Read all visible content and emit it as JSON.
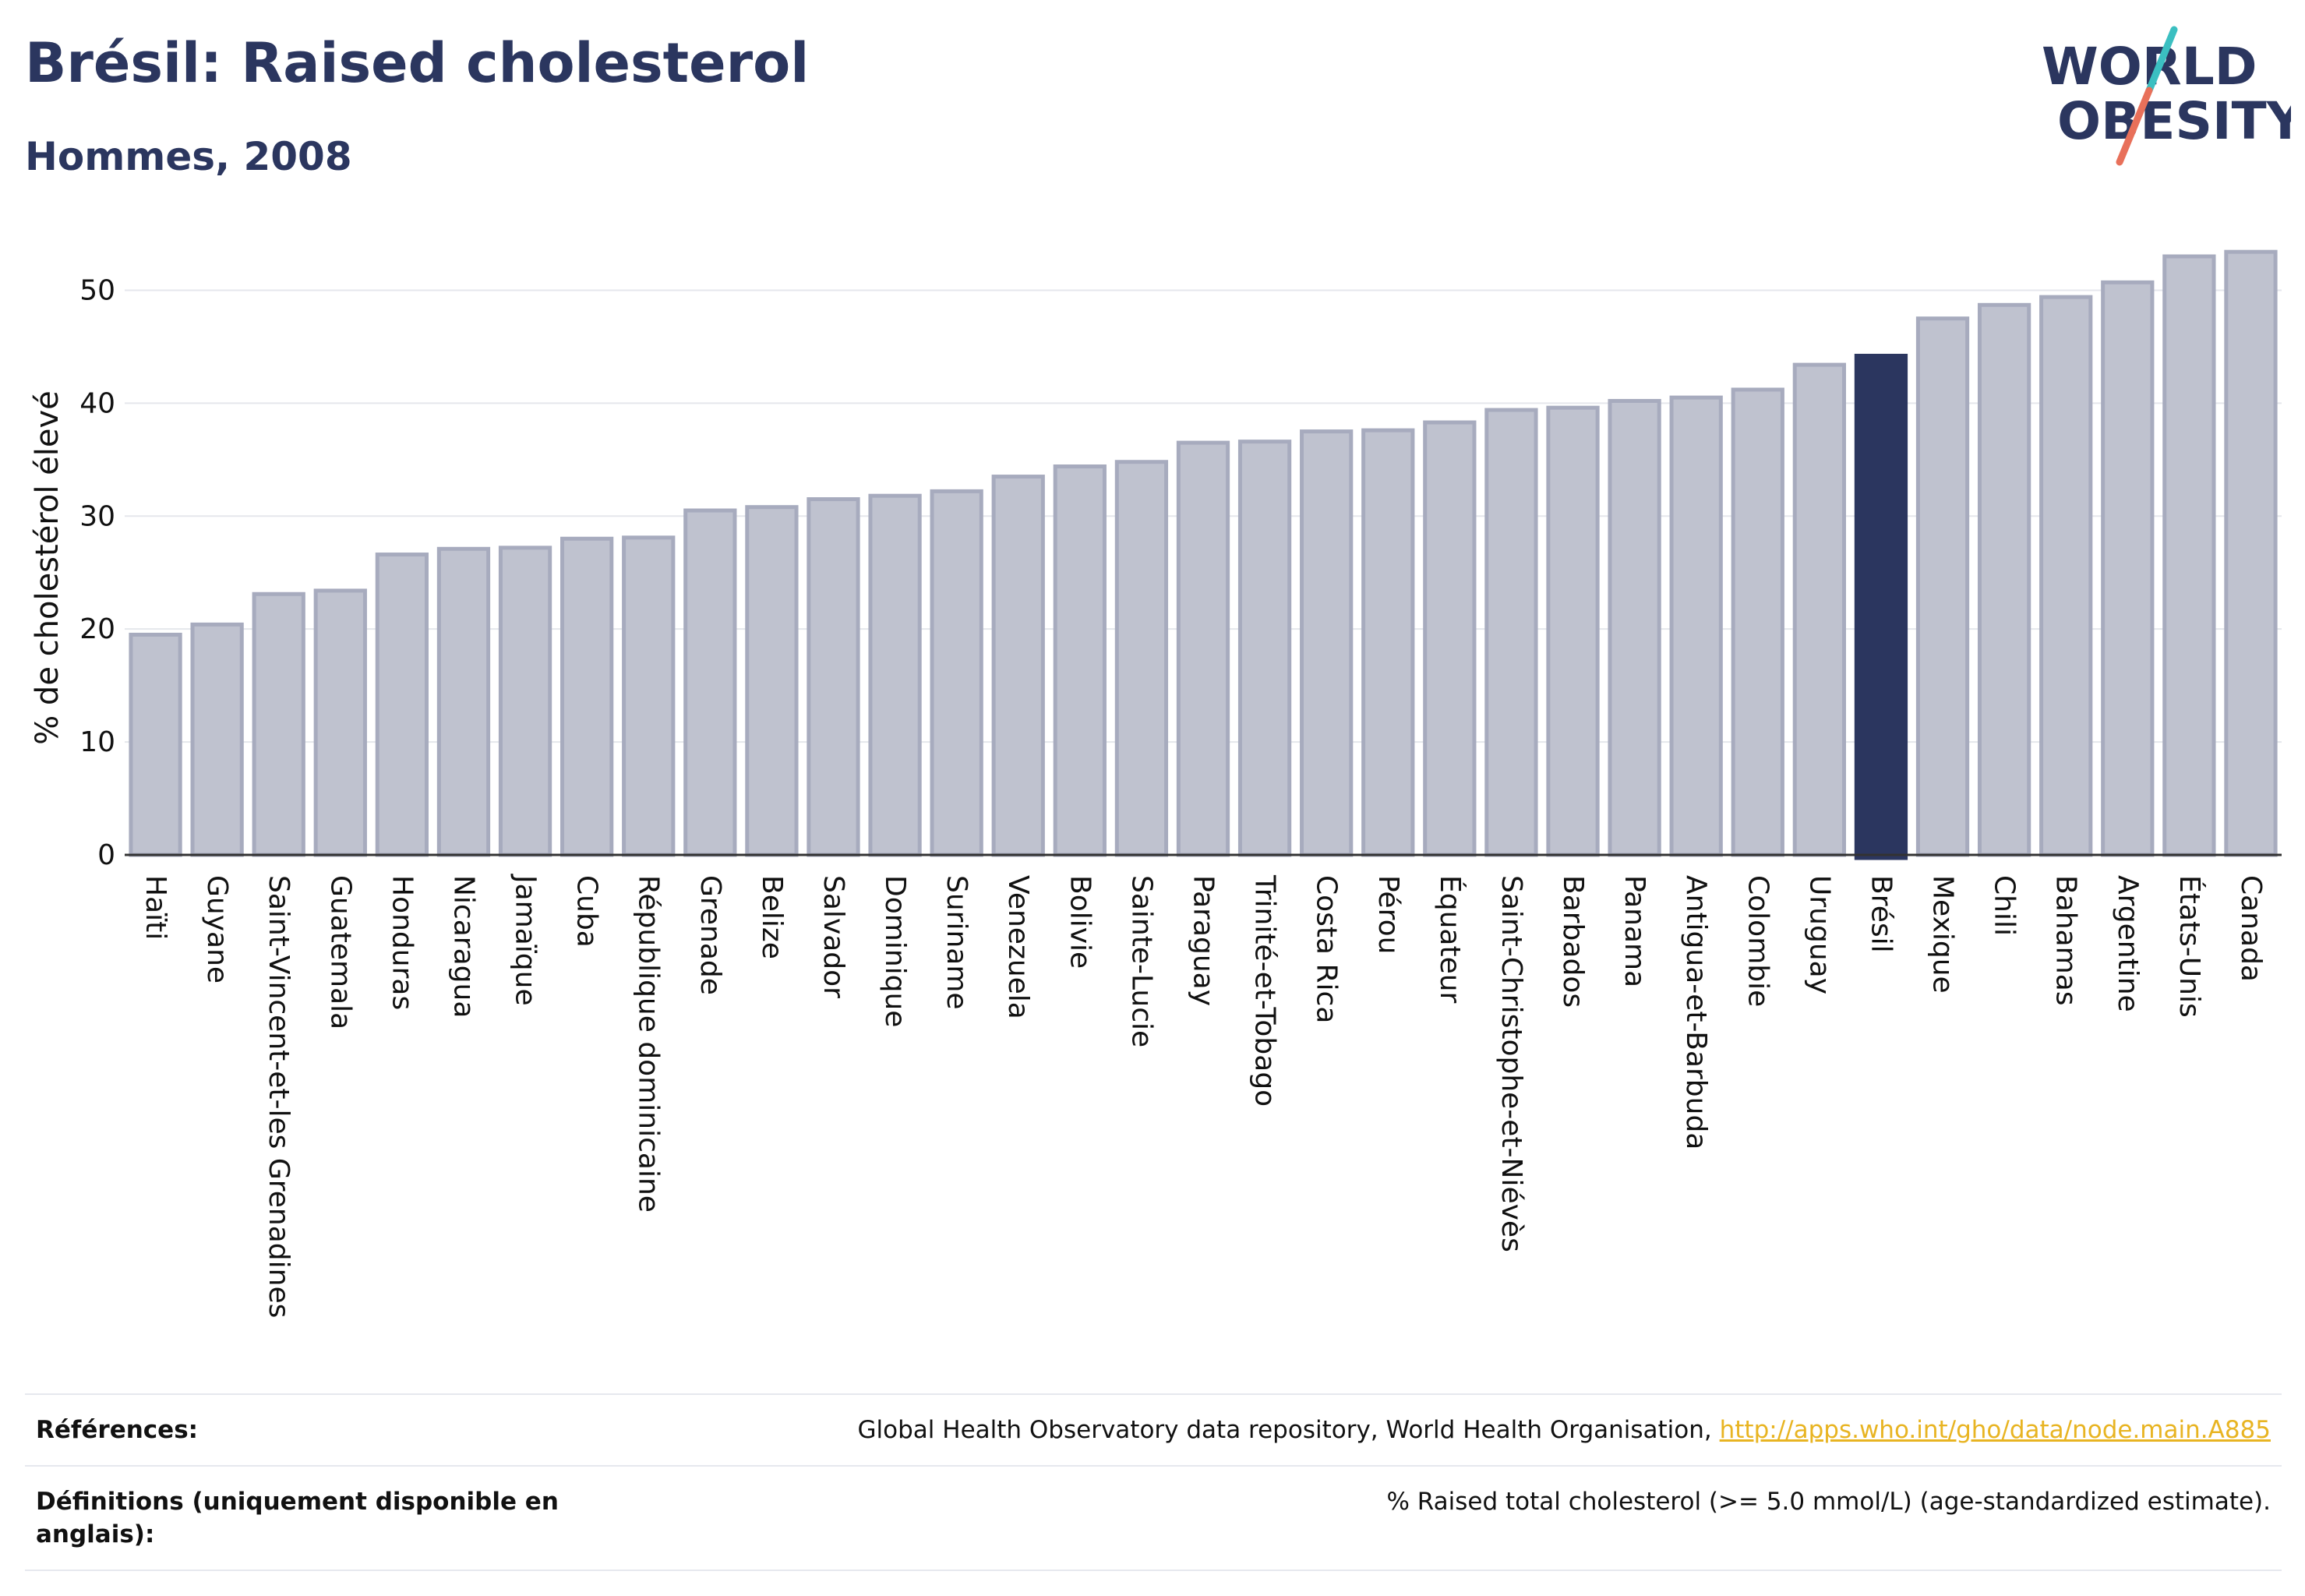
{
  "header": {
    "title": "Brésil: Raised cholesterol",
    "subtitle": "Hommes, 2008"
  },
  "logo": {
    "line1": "WORLD",
    "line2": "OBESITY",
    "accent_teal": "#3bbfc1",
    "accent_red": "#e8705a",
    "text_color": "#2b365f"
  },
  "footer": {
    "references_label": "Références:",
    "references_text": "Global Health Observatory data repository, World Health Organisation, ",
    "references_link": "http://apps.who.int/gho/data/node.main.A885",
    "definitions_label": "Définitions (uniquement disponible en anglais):",
    "definitions_text": "% Raised total cholesterol (>= 5.0 mmol/L) (age-standardized estimate)."
  },
  "chart_data": {
    "type": "bar",
    "ylabel": "% de cholestérol élevé",
    "ylim": [
      0,
      55
    ],
    "yticks": [
      0,
      10,
      20,
      30,
      40,
      50
    ],
    "grid": true,
    "highlight": "Brésil",
    "colors": {
      "bar": "#bfc2cf",
      "bar_border": "#a7abbe",
      "highlight": "#2b365f"
    },
    "categories": [
      "Haïti",
      "Guyane",
      "Saint-Vincent-et-les Grenadines",
      "Guatemala",
      "Honduras",
      "Nicaragua",
      "Jamaïque",
      "Cuba",
      "République dominicaine",
      "Grenade",
      "Belize",
      "Salvador",
      "Dominique",
      "Suriname",
      "Venezuela",
      "Bolivie",
      "Sainte-Lucie",
      "Paraguay",
      "Trinité-et-Tobago",
      "Costa Rica",
      "Pérou",
      "Équateur",
      "Saint-Christophe-et-Niévès",
      "Barbados",
      "Panama",
      "Antigua-et-Barbuda",
      "Colombie",
      "Uruguay",
      "Brésil",
      "Mexique",
      "Chili",
      "Bahamas",
      "Argentine",
      "États-Unis",
      "Canada"
    ],
    "values": [
      19.5,
      20.4,
      23.1,
      23.4,
      26.6,
      27.1,
      27.2,
      28.0,
      28.1,
      30.5,
      30.8,
      31.5,
      31.8,
      32.2,
      33.5,
      34.4,
      34.8,
      36.5,
      36.6,
      37.5,
      37.6,
      38.3,
      39.4,
      39.6,
      40.2,
      40.5,
      41.2,
      43.4,
      44.2,
      47.5,
      48.7,
      49.4,
      50.7,
      53.0,
      53.4
    ]
  }
}
